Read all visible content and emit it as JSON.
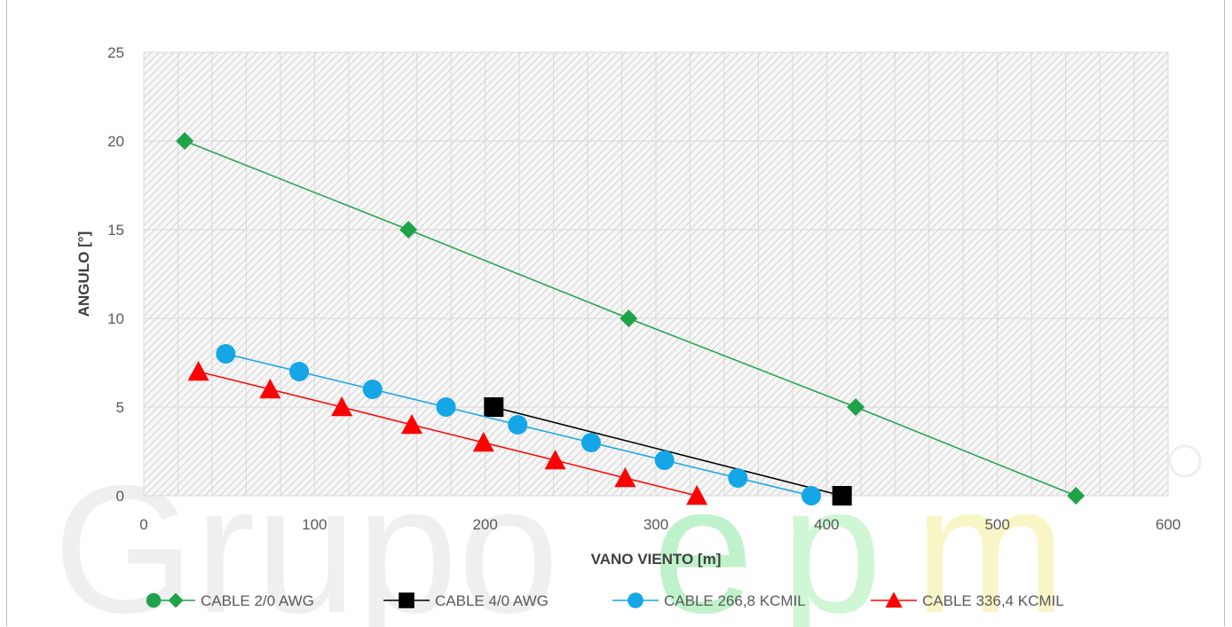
{
  "chart_data": {
    "type": "scatter",
    "xlabel": "VANO VIENTO [m]",
    "ylabel": "ANGULO [°]",
    "xlim": [
      0,
      600
    ],
    "ylim": [
      0,
      25
    ],
    "x_ticks": [
      "0",
      "100",
      "200",
      "300",
      "400",
      "500",
      "600"
    ],
    "y_ticks": [
      "0",
      "5",
      "10",
      "15",
      "20",
      "25"
    ],
    "grid": true,
    "legend_position": "bottom",
    "watermark": "Grupo epm",
    "series": [
      {
        "name": "CABLE 2/0 AWG",
        "color": "#1fa34a",
        "marker": "diamond",
        "x": [
          24,
          155,
          284,
          417,
          546
        ],
        "y": [
          20,
          15,
          10,
          5,
          0
        ]
      },
      {
        "name": "CABLE 4/0 AWG",
        "color": "#000000",
        "marker": "square",
        "x": [
          205,
          409
        ],
        "y": [
          5,
          0
        ]
      },
      {
        "name": "CABLE 266,8 KCMIL",
        "color": "#14a6e6",
        "marker": "circle",
        "x": [
          48,
          91,
          134,
          177,
          219,
          262,
          305,
          348,
          391
        ],
        "y": [
          8,
          7,
          6,
          5,
          4,
          3,
          2,
          1,
          0
        ]
      },
      {
        "name": "CABLE 336,4 KCMIL",
        "color": "#ff0000",
        "marker": "triangle",
        "x": [
          32,
          74,
          116,
          157,
          199,
          241,
          282,
          324
        ],
        "y": [
          7,
          6,
          5,
          4,
          3,
          2,
          1,
          0
        ]
      }
    ]
  }
}
